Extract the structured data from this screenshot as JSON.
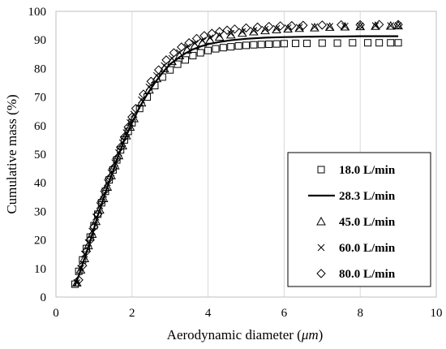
{
  "chart_data": {
    "type": "scatter",
    "xlabel_prefix": "Aerodynamic diameter (",
    "xlabel_unit": "μm",
    "xlabel_suffix": ")",
    "ylabel": "Cumulative mass (%)",
    "xlim": [
      0,
      10
    ],
    "ylim": [
      0,
      100
    ],
    "xticks": [
      "0",
      "2",
      "4",
      "6",
      "8",
      "10"
    ],
    "yticks": [
      "0",
      "10",
      "20",
      "30",
      "40",
      "50",
      "60",
      "70",
      "80",
      "90",
      "100"
    ],
    "grid": "vertical",
    "legend_position": "bottom-right",
    "series": [
      {
        "name": "18.0 L/min",
        "marker": "square",
        "x": [
          0.5,
          0.6,
          0.7,
          0.8,
          0.9,
          1.0,
          1.1,
          1.2,
          1.3,
          1.4,
          1.5,
          1.6,
          1.7,
          1.8,
          1.9,
          2.0,
          2.2,
          2.4,
          2.6,
          2.8,
          3.0,
          3.2,
          3.4,
          3.6,
          3.8,
          4.0,
          4.2,
          4.4,
          4.6,
          4.8,
          5.0,
          5.2,
          5.4,
          5.6,
          5.8,
          6.0,
          6.3,
          6.6,
          7.0,
          7.4,
          7.8,
          8.2,
          8.5,
          8.8,
          9.0
        ],
        "y": [
          4.5,
          9,
          13,
          17,
          21,
          25,
          29,
          33,
          37,
          41,
          44.5,
          48,
          51.5,
          55,
          58,
          61,
          66,
          70,
          74,
          77,
          79.5,
          81.5,
          83,
          84.5,
          85.5,
          86.3,
          86.9,
          87.3,
          87.6,
          87.9,
          88.1,
          88.3,
          88.4,
          88.5,
          88.6,
          88.7,
          88.8,
          88.8,
          88.9,
          88.9,
          89,
          89,
          89,
          89,
          89
        ]
      },
      {
        "name": "28.3 L/min",
        "marker": "line",
        "x": [
          0.5,
          0.6,
          0.7,
          0.8,
          0.9,
          1.0,
          1.1,
          1.2,
          1.3,
          1.4,
          1.5,
          1.6,
          1.7,
          1.8,
          1.9,
          2.0,
          2.2,
          2.4,
          2.6,
          2.8,
          3.0,
          3.2,
          3.4,
          3.6,
          3.8,
          4.0,
          4.3,
          4.6,
          5.0,
          5.5,
          6.0,
          6.5,
          7.0,
          7.5,
          8.0,
          8.5,
          9.0
        ],
        "y": [
          4,
          7.5,
          11.5,
          15.5,
          19.5,
          24,
          28.5,
          32.5,
          36.5,
          40.5,
          44,
          48,
          51.5,
          55,
          58,
          61,
          66.5,
          71,
          75,
          78.5,
          81.5,
          83.5,
          85.3,
          86.7,
          87.7,
          88.5,
          89.3,
          89.9,
          90.4,
          90.8,
          91,
          91.1,
          91.2,
          91.2,
          91.3,
          91.3,
          91.3
        ]
      },
      {
        "name": "45.0 L/min",
        "marker": "triangle",
        "x": [
          0.55,
          0.65,
          0.75,
          0.85,
          0.95,
          1.05,
          1.15,
          1.25,
          1.35,
          1.45,
          1.55,
          1.65,
          1.75,
          1.85,
          1.95,
          2.05,
          2.25,
          2.45,
          2.65,
          2.85,
          3.05,
          3.25,
          3.45,
          3.65,
          3.85,
          4.05,
          4.3,
          4.6,
          4.9,
          5.2,
          5.5,
          5.8,
          6.1,
          6.4,
          6.8,
          7.2,
          7.6,
          8.0,
          8.4,
          8.8,
          9.0
        ],
        "y": [
          5,
          9.5,
          13.5,
          18,
          22,
          26.5,
          30.5,
          34.5,
          38.5,
          42.5,
          46,
          49.5,
          53,
          56.5,
          59.5,
          62.5,
          68,
          72.5,
          76.5,
          80,
          82.5,
          84.5,
          86.5,
          88,
          89,
          90,
          91,
          91.8,
          92.4,
          92.9,
          93.3,
          93.6,
          93.9,
          94.1,
          94.3,
          94.5,
          94.6,
          94.7,
          94.8,
          94.9,
          95
        ]
      },
      {
        "name": "60.0 L/min",
        "marker": "x",
        "x": [
          0.55,
          0.65,
          0.75,
          0.85,
          0.95,
          1.05,
          1.15,
          1.25,
          1.35,
          1.45,
          1.55,
          1.65,
          1.75,
          1.85,
          1.95,
          2.05,
          2.25,
          2.45,
          2.65,
          2.85,
          3.05,
          3.25,
          3.45,
          3.65,
          3.85,
          4.05,
          4.3,
          4.6,
          4.9,
          5.2,
          5.5,
          5.8,
          6.1,
          6.4,
          6.8,
          7.2,
          7.6,
          8.0,
          8.4,
          8.8,
          9.0
        ],
        "y": [
          5,
          10,
          15,
          19,
          23,
          28,
          32,
          36,
          40,
          43.5,
          47,
          50.5,
          54,
          57.5,
          61,
          64,
          69,
          73.5,
          77.5,
          81,
          83.5,
          85.5,
          87.5,
          88.8,
          89.8,
          90.7,
          91.6,
          92.3,
          92.9,
          93.3,
          93.7,
          94,
          94.2,
          94.4,
          94.6,
          94.7,
          94.8,
          94.9,
          95,
          95,
          95
        ]
      },
      {
        "name": "80.0 L/min",
        "marker": "diamond",
        "x": [
          0.6,
          0.7,
          0.8,
          0.9,
          1.0,
          1.1,
          1.2,
          1.3,
          1.4,
          1.5,
          1.6,
          1.7,
          1.8,
          1.9,
          2.0,
          2.1,
          2.3,
          2.5,
          2.7,
          2.9,
          3.1,
          3.3,
          3.5,
          3.7,
          3.9,
          4.1,
          4.3,
          4.5,
          4.7,
          5.0,
          5.3,
          5.6,
          5.9,
          6.2,
          6.5,
          7.0,
          7.5,
          8.0,
          8.5,
          9.0
        ],
        "y": [
          6,
          11,
          16,
          20,
          24.5,
          29,
          33.5,
          37.5,
          41.5,
          45,
          48.5,
          52.5,
          56,
          59.5,
          63,
          66,
          71,
          75.5,
          79.5,
          83,
          85.5,
          87.5,
          89,
          90.5,
          91.5,
          92.3,
          92.9,
          93.4,
          93.8,
          94.2,
          94.5,
          94.7,
          94.9,
          95,
          95.1,
          95.2,
          95.3,
          95.3,
          95.4,
          95.4
        ]
      }
    ]
  }
}
